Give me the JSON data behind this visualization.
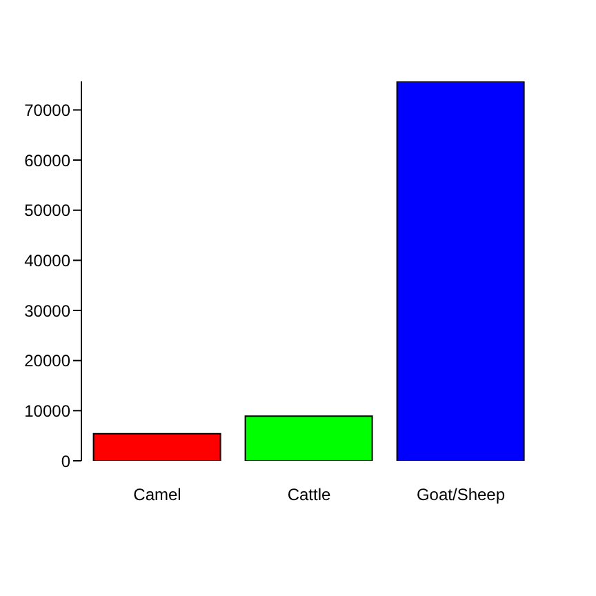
{
  "chart_data": {
    "type": "bar",
    "categories": [
      "Camel",
      "Cattle",
      "Goat/Sheep"
    ],
    "values": [
      5400,
      8900,
      75700
    ],
    "colors": [
      "#ff0000",
      "#00ff00",
      "#0000ff"
    ],
    "ylim": [
      0,
      75700
    ],
    "yticks": [
      0,
      10000,
      20000,
      30000,
      40000,
      50000,
      60000,
      70000
    ],
    "grid": false,
    "legend": false
  }
}
